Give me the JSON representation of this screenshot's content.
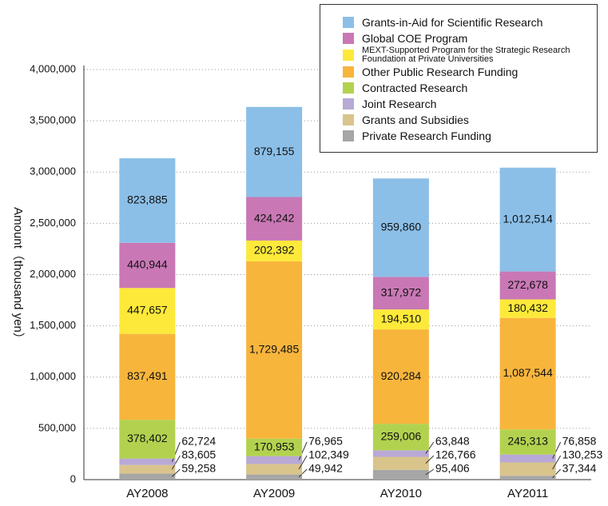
{
  "chart_data": {
    "type": "stacked_bar",
    "ylabel": "Amount（thousand yen）",
    "categories": [
      "AY2008",
      "AY2009",
      "AY2010",
      "AY2011"
    ],
    "ylim": [
      0,
      4000000
    ],
    "yticks": [
      0,
      {
        "value": 500000,
        "label": "500,000"
      },
      {
        "value": 1000000,
        "label": "1,000,000"
      },
      {
        "value": 1500000,
        "label": "1,500,000"
      },
      {
        "value": 2000000,
        "label": "2,000,000"
      },
      {
        "value": 2500000,
        "label": "2,500,000"
      },
      {
        "value": 3000000,
        "label": "3,000,000"
      },
      {
        "value": 3500000,
        "label": "3,500,000"
      },
      {
        "value": 4000000,
        "label": "4,000,000"
      }
    ],
    "grid": true,
    "legend": "upper right",
    "series": [
      {
        "name": "Private Research Funding",
        "color": "#a6a6a6",
        "values": [
          59258,
          49942,
          95406,
          37344
        ],
        "value_labels": [
          "59,258",
          "49,942",
          "95,406",
          "37,344"
        ]
      },
      {
        "name": "Grants and Subsidies",
        "color": "#d9c48c",
        "values": [
          83605,
          102349,
          126766,
          130253
        ],
        "value_labels": [
          "83,605",
          "102,349",
          "126,766",
          "130,253"
        ]
      },
      {
        "name": "Joint Research",
        "color": "#b9a9d6",
        "values": [
          62724,
          76965,
          63848,
          76858
        ],
        "value_labels": [
          "62,724",
          "76,965",
          "63,848",
          "76,858"
        ]
      },
      {
        "name": "Contracted Research",
        "color": "#b2d24f",
        "values": [
          378402,
          170953,
          259006,
          245313
        ],
        "value_labels": [
          "378,402",
          "170,953",
          "259,006",
          "245,313"
        ]
      },
      {
        "name": "Other Public Research Funding",
        "color": "#f8b53c",
        "values": [
          837491,
          1729485,
          920284,
          1087544
        ],
        "value_labels": [
          "837,491",
          "1,729,485",
          "920,284",
          "1,087,544"
        ]
      },
      {
        "name": "MEXT-Supported Program for the Strategic Research Foundation at Private Universities",
        "color": "#fde93a",
        "values": [
          447657,
          202392,
          194510,
          180432
        ],
        "value_labels": [
          "447,657",
          "202,392",
          "194,510",
          "180,432"
        ]
      },
      {
        "name": "Global COE Program",
        "color": "#c978b5",
        "values": [
          440944,
          424242,
          317972,
          272678
        ],
        "value_labels": [
          "440,944",
          "424,242",
          "317,972",
          "272,678"
        ]
      },
      {
        "name": "Grants-in-Aid for Scientific Research",
        "color": "#8bbfe8",
        "values": [
          823885,
          879155,
          959860,
          1012514
        ],
        "value_labels": [
          "823,885",
          "879,155",
          "959,860",
          "1,012,514"
        ]
      }
    ]
  }
}
